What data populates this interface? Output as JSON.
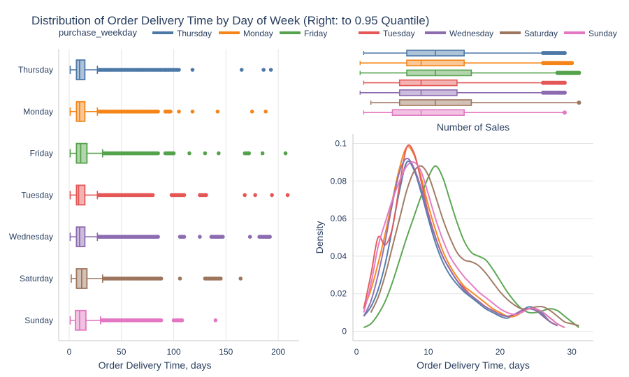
{
  "title": "Distribution of Order Delivery Time by Day of Week (Right: to 0.95 Quantile)",
  "legend_title": "purchase_weekday",
  "colors": {
    "Thursday": "#4c78a8",
    "Monday": "#f58518",
    "Friday": "#54a24b",
    "Tuesday": "#e45756",
    "Wednesday": "#8c6bb1",
    "Saturday": "#9d755d",
    "Sunday": "#e377c2"
  },
  "chart_data": [
    {
      "type": "box",
      "name": "full-range boxplot",
      "orientation": "horizontal",
      "xlabel": "Order Delivery Time, days",
      "xlim": [
        -10,
        220
      ],
      "xticks": [
        0,
        50,
        100,
        150,
        200
      ],
      "categories": [
        "Thursday",
        "Monday",
        "Friday",
        "Tuesday",
        "Wednesday",
        "Saturday",
        "Sunday"
      ],
      "boxes": [
        {
          "name": "Thursday",
          "min": 1,
          "q1": 7,
          "median": 10,
          "q3": 15,
          "upper_fence": 27,
          "outliers": [
            30,
            35,
            40,
            45,
            50,
            55,
            60,
            65,
            70,
            75,
            80,
            85,
            88,
            92,
            95,
            100,
            105,
            118,
            165,
            186,
            193
          ]
        },
        {
          "name": "Monday",
          "min": 1,
          "q1": 7,
          "median": 10,
          "q3": 15,
          "upper_fence": 27,
          "outliers": [
            30,
            35,
            40,
            45,
            50,
            55,
            60,
            65,
            70,
            75,
            80,
            85,
            92,
            97,
            105,
            118,
            142,
            175,
            188
          ]
        },
        {
          "name": "Friday",
          "min": 1,
          "q1": 7,
          "median": 11,
          "q3": 17,
          "upper_fence": 32,
          "outliers": [
            35,
            40,
            45,
            50,
            55,
            60,
            65,
            70,
            75,
            80,
            85,
            92,
            97,
            100,
            115,
            130,
            143,
            168,
            172,
            185,
            207
          ]
        },
        {
          "name": "Tuesday",
          "min": 1,
          "q1": 7,
          "median": 9,
          "q3": 15,
          "upper_fence": 27,
          "outliers": [
            30,
            35,
            40,
            45,
            50,
            55,
            60,
            65,
            70,
            75,
            80,
            98,
            102,
            106,
            110,
            125,
            131,
            168,
            178,
            194,
            209
          ]
        },
        {
          "name": "Wednesday",
          "min": 1,
          "q1": 7,
          "median": 10,
          "q3": 15,
          "upper_fence": 27,
          "outliers": [
            30,
            35,
            40,
            45,
            50,
            55,
            60,
            65,
            70,
            75,
            80,
            85,
            106,
            110,
            125,
            136,
            142,
            147,
            173,
            182,
            188,
            192
          ]
        },
        {
          "name": "Saturday",
          "min": 2,
          "q1": 7,
          "median": 12,
          "q3": 17,
          "upper_fence": 32,
          "outliers": [
            35,
            40,
            45,
            50,
            55,
            60,
            65,
            70,
            75,
            80,
            85,
            88,
            106,
            130,
            135,
            140,
            145,
            164
          ]
        },
        {
          "name": "Sunday",
          "min": 1,
          "q1": 6,
          "median": 10,
          "q3": 16,
          "upper_fence": 30,
          "outliers": [
            33,
            37,
            40,
            45,
            50,
            55,
            60,
            65,
            70,
            75,
            80,
            85,
            88,
            100,
            104,
            108,
            140
          ]
        }
      ]
    },
    {
      "type": "box",
      "name": "0.95 quantile marginal boxplot",
      "orientation": "horizontal",
      "xlabel": "Number of Sales",
      "categories": [
        "Thursday",
        "Monday",
        "Friday",
        "Tuesday",
        "Wednesday",
        "Saturday",
        "Sunday"
      ],
      "boxes": [
        {
          "name": "Thursday",
          "min": 1,
          "q1": 7,
          "median": 11,
          "q3": 15,
          "upper_fence": 26,
          "outliers_from": 26,
          "outliers_to": 29
        },
        {
          "name": "Monday",
          "min": 0.5,
          "q1": 7,
          "median": 9,
          "q3": 15,
          "upper_fence": 26,
          "outliers_from": 26,
          "outliers_to": 30
        },
        {
          "name": "Friday",
          "min": 0.5,
          "q1": 7,
          "median": 11,
          "q3": 16,
          "upper_fence": 28,
          "outliers_from": 28,
          "outliers_to": 31
        },
        {
          "name": "Tuesday",
          "min": 1,
          "q1": 6,
          "median": 9,
          "q3": 14,
          "upper_fence": 26,
          "outliers_from": 26,
          "outliers_to": 29
        },
        {
          "name": "Wednesday",
          "min": 0.5,
          "q1": 6,
          "median": 9,
          "q3": 14,
          "upper_fence": 26,
          "outliers_from": 26,
          "outliers_to": 29
        },
        {
          "name": "Saturday",
          "min": 2,
          "q1": 6,
          "median": 11,
          "q3": 16,
          "upper_fence": 31,
          "outliers_from": 31,
          "outliers_to": 31
        },
        {
          "name": "Sunday",
          "min": 1,
          "q1": 5,
          "median": 9,
          "q3": 15,
          "upper_fence": 29,
          "outliers_from": 29,
          "outliers_to": 29
        }
      ]
    },
    {
      "type": "line",
      "name": "density curves",
      "xlabel": "Order Delivery Time, days",
      "ylabel": "Density",
      "xlim": [
        -0.5,
        33
      ],
      "ylim": [
        -0.005,
        0.105
      ],
      "xticks": [
        0,
        10,
        20,
        30
      ],
      "yticks": [
        0,
        0.02,
        0.04,
        0.06,
        0.08,
        0.1
      ],
      "series": [
        {
          "name": "Thursday",
          "x": [
            1,
            2,
            3,
            4,
            5,
            6,
            7,
            8,
            9,
            10,
            11,
            12,
            13,
            14,
            15,
            16,
            17,
            18,
            19,
            20,
            21,
            22,
            23,
            24,
            25,
            26,
            27,
            28
          ],
          "y": [
            0.008,
            0.013,
            0.022,
            0.036,
            0.055,
            0.075,
            0.09,
            0.086,
            0.074,
            0.06,
            0.047,
            0.037,
            0.03,
            0.025,
            0.021,
            0.018,
            0.015,
            0.012,
            0.01,
            0.008,
            0.007,
            0.009,
            0.011,
            0.013,
            0.012,
            0.009,
            0.005,
            0.003
          ]
        },
        {
          "name": "Monday",
          "x": [
            1,
            2,
            3,
            4,
            5,
            6,
            7,
            8,
            9,
            10,
            11,
            12,
            13,
            14,
            15,
            16,
            17,
            18,
            19,
            20,
            21,
            22,
            23,
            24,
            25,
            26,
            27,
            28,
            29
          ],
          "y": [
            0.012,
            0.022,
            0.036,
            0.052,
            0.07,
            0.087,
            0.098,
            0.094,
            0.082,
            0.067,
            0.054,
            0.043,
            0.035,
            0.029,
            0.024,
            0.021,
            0.018,
            0.015,
            0.012,
            0.01,
            0.008,
            0.008,
            0.01,
            0.012,
            0.012,
            0.01,
            0.007,
            0.004,
            0.002
          ]
        },
        {
          "name": "Friday",
          "x": [
            1,
            2,
            3,
            4,
            5,
            6,
            7,
            8,
            9,
            10,
            11,
            12,
            13,
            14,
            15,
            16,
            17,
            18,
            19,
            20,
            21,
            22,
            23,
            24,
            25,
            26,
            27,
            28,
            29,
            30,
            31
          ],
          "y": [
            0.002,
            0.004,
            0.009,
            0.016,
            0.026,
            0.038,
            0.05,
            0.061,
            0.072,
            0.082,
            0.088,
            0.082,
            0.07,
            0.058,
            0.048,
            0.042,
            0.04,
            0.038,
            0.033,
            0.027,
            0.021,
            0.016,
            0.012,
            0.01,
            0.01,
            0.011,
            0.012,
            0.011,
            0.008,
            0.005,
            0.002
          ]
        },
        {
          "name": "Tuesday",
          "x": [
            1,
            2,
            3,
            4,
            5,
            6,
            7,
            8,
            9,
            10,
            11,
            12,
            13,
            14,
            15,
            16,
            17,
            18,
            19,
            20,
            21,
            22,
            23,
            24,
            25,
            26,
            27,
            28
          ],
          "y": [
            0.012,
            0.03,
            0.05,
            0.046,
            0.055,
            0.078,
            0.098,
            0.095,
            0.08,
            0.063,
            0.05,
            0.04,
            0.033,
            0.027,
            0.023,
            0.019,
            0.016,
            0.013,
            0.011,
            0.009,
            0.008,
            0.009,
            0.011,
            0.012,
            0.011,
            0.008,
            0.005,
            0.003
          ]
        },
        {
          "name": "Wednesday",
          "x": [
            1,
            2,
            3,
            4,
            5,
            6,
            7,
            8,
            9,
            10,
            11,
            12,
            13,
            14,
            15,
            16,
            17,
            18,
            19,
            20,
            21,
            22,
            23,
            24,
            25,
            26,
            27,
            28
          ],
          "y": [
            0.008,
            0.016,
            0.03,
            0.048,
            0.068,
            0.085,
            0.092,
            0.087,
            0.076,
            0.062,
            0.05,
            0.04,
            0.033,
            0.027,
            0.022,
            0.019,
            0.016,
            0.013,
            0.011,
            0.009,
            0.008,
            0.009,
            0.011,
            0.012,
            0.011,
            0.008,
            0.005,
            0.003
          ]
        },
        {
          "name": "Saturday",
          "x": [
            2,
            3,
            4,
            5,
            6,
            7,
            8,
            9,
            10,
            11,
            12,
            13,
            14,
            15,
            16,
            17,
            18,
            19,
            20,
            21,
            22,
            23,
            24,
            25,
            26,
            27,
            28,
            29,
            30,
            31
          ],
          "y": [
            0.01,
            0.018,
            0.03,
            0.045,
            0.06,
            0.075,
            0.085,
            0.088,
            0.083,
            0.072,
            0.06,
            0.05,
            0.042,
            0.038,
            0.037,
            0.035,
            0.031,
            0.026,
            0.021,
            0.017,
            0.014,
            0.012,
            0.012,
            0.013,
            0.013,
            0.011,
            0.008,
            0.005,
            0.004,
            0.003
          ]
        },
        {
          "name": "Sunday",
          "x": [
            1,
            2,
            3,
            4,
            5,
            6,
            7,
            8,
            9,
            10,
            11,
            12,
            13,
            14,
            15,
            16,
            17,
            18,
            19,
            20,
            21,
            22,
            23,
            24,
            25,
            26,
            27,
            28,
            29
          ],
          "y": [
            0.01,
            0.025,
            0.045,
            0.058,
            0.07,
            0.08,
            0.088,
            0.09,
            0.085,
            0.073,
            0.06,
            0.049,
            0.04,
            0.034,
            0.029,
            0.025,
            0.021,
            0.018,
            0.015,
            0.012,
            0.01,
            0.009,
            0.01,
            0.012,
            0.012,
            0.01,
            0.007,
            0.004,
            0.002
          ]
        }
      ]
    }
  ]
}
